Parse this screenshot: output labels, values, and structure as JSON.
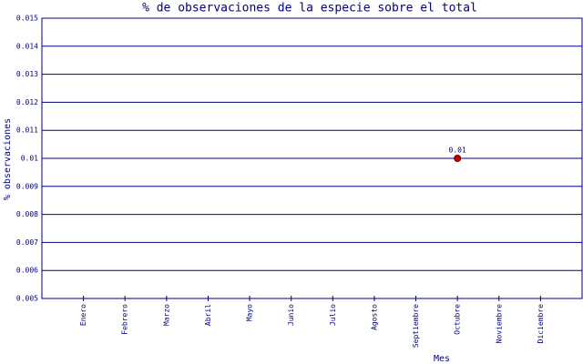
{
  "chart_data": {
    "type": "line",
    "title": "% de observaciones de la especie sobre el total",
    "x_label": "Mes",
    "y_label": "% observaciones",
    "categories": [
      "Enero",
      "Febrero",
      "Marzo",
      "Abril",
      "Mayo",
      "Junio",
      "Julio",
      "Agosto",
      "Septiembre",
      "Octubre",
      "Noviembre",
      "Diciembre"
    ],
    "values": [
      null,
      null,
      null,
      null,
      null,
      null,
      null,
      null,
      null,
      0.01,
      null,
      null
    ],
    "color": "#cc0000",
    "ylim": [
      0.005,
      0.015
    ],
    "yticks": [
      0.005,
      0.006,
      0.007,
      0.008,
      0.009,
      0.01,
      0.011,
      0.012,
      0.013,
      0.014,
      0.015
    ],
    "grid": true
  }
}
